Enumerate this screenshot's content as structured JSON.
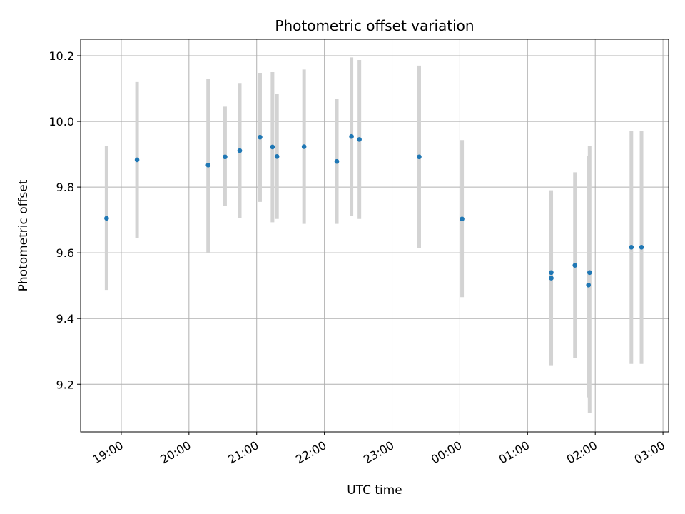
{
  "chart_data": {
    "type": "scatter",
    "title": "Photometric offset variation",
    "xlabel": "UTC time",
    "ylabel": "Photometric offset",
    "xlim": [
      "2023-01-01T18:24",
      "2023-01-02T03:05"
    ],
    "ylim": [
      9.055,
      10.25
    ],
    "x_ticks": [
      {
        "value": "2023-01-01T19:00",
        "label": "19:00"
      },
      {
        "value": "2023-01-01T20:00",
        "label": "20:00"
      },
      {
        "value": "2023-01-01T21:00",
        "label": "21:00"
      },
      {
        "value": "2023-01-01T22:00",
        "label": "22:00"
      },
      {
        "value": "2023-01-01T23:00",
        "label": "23:00"
      },
      {
        "value": "2023-01-02T00:00",
        "label": "00:00"
      },
      {
        "value": "2023-01-02T01:00",
        "label": "01:00"
      },
      {
        "value": "2023-01-02T02:00",
        "label": "02:00"
      },
      {
        "value": "2023-01-02T03:00",
        "label": "03:00"
      }
    ],
    "y_ticks": [
      {
        "value": 9.2,
        "label": "9.2"
      },
      {
        "value": 9.4,
        "label": "9.4"
      },
      {
        "value": 9.6,
        "label": "9.6"
      },
      {
        "value": 9.8,
        "label": "9.8"
      },
      {
        "value": 10.0,
        "label": "10.0"
      },
      {
        "value": 10.2,
        "label": "10.2"
      }
    ],
    "grid": true,
    "colors": {
      "point": "#1f77b4",
      "errorbar": "#d3d3d3",
      "grid": "#b0b0b0"
    },
    "points": [
      {
        "t": "2023-01-01T18:47",
        "y": 9.705,
        "low": 9.487,
        "high": 9.926
      },
      {
        "t": "2023-01-01T19:14",
        "y": 9.883,
        "low": 9.645,
        "high": 10.12
      },
      {
        "t": "2023-01-01T20:17",
        "y": 9.867,
        "low": 9.6,
        "high": 10.13
      },
      {
        "t": "2023-01-01T20:32",
        "y": 9.892,
        "low": 9.742,
        "high": 10.045
      },
      {
        "t": "2023-01-01T20:45",
        "y": 9.911,
        "low": 9.705,
        "high": 10.117
      },
      {
        "t": "2023-01-01T21:03",
        "y": 9.952,
        "low": 9.755,
        "high": 10.148
      },
      {
        "t": "2023-01-01T21:14",
        "y": 9.922,
        "low": 9.693,
        "high": 10.15
      },
      {
        "t": "2023-01-01T21:18",
        "y": 9.893,
        "low": 9.703,
        "high": 10.085
      },
      {
        "t": "2023-01-01T21:42",
        "y": 9.923,
        "low": 9.688,
        "high": 10.158
      },
      {
        "t": "2023-01-01T22:11",
        "y": 9.878,
        "low": 9.688,
        "high": 10.068
      },
      {
        "t": "2023-01-01T22:24",
        "y": 9.954,
        "low": 9.712,
        "high": 10.195
      },
      {
        "t": "2023-01-01T22:31",
        "y": 9.945,
        "low": 9.703,
        "high": 10.187
      },
      {
        "t": "2023-01-01T23:24",
        "y": 9.892,
        "low": 9.615,
        "high": 10.17
      },
      {
        "t": "2023-01-02T00:02",
        "y": 9.703,
        "low": 9.465,
        "high": 9.943
      },
      {
        "t": "2023-01-02T01:21",
        "y": 9.54,
        "low": 9.26,
        "high": 9.79
      },
      {
        "t": "2023-01-02T01:21",
        "y": 9.523,
        "low": 9.258,
        "high": 9.79
      },
      {
        "t": "2023-01-02T01:42",
        "y": 9.562,
        "low": 9.28,
        "high": 9.845
      },
      {
        "t": "2023-01-02T01:55",
        "y": 9.54,
        "low": 9.112,
        "high": 9.925
      },
      {
        "t": "2023-01-02T01:54",
        "y": 9.502,
        "low": 9.16,
        "high": 9.895
      },
      {
        "t": "2023-01-02T02:32",
        "y": 9.617,
        "low": 9.262,
        "high": 9.972
      },
      {
        "t": "2023-01-02T02:41",
        "y": 9.617,
        "low": 9.262,
        "high": 9.972
      }
    ]
  }
}
